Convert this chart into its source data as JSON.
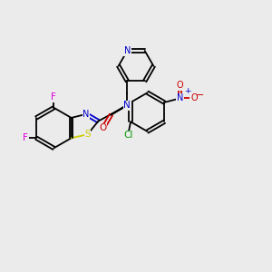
{
  "bg": "#ebebeb",
  "figsize": [
    3.0,
    3.0
  ],
  "dpi": 100,
  "colors": {
    "bond": "#000000",
    "N": "#0000cc",
    "O": "#cc0000",
    "S": "#cccc00",
    "F": "#dd00dd",
    "Cl": "#009900",
    "bg": "#ebebeb"
  },
  "lw": 1.3
}
